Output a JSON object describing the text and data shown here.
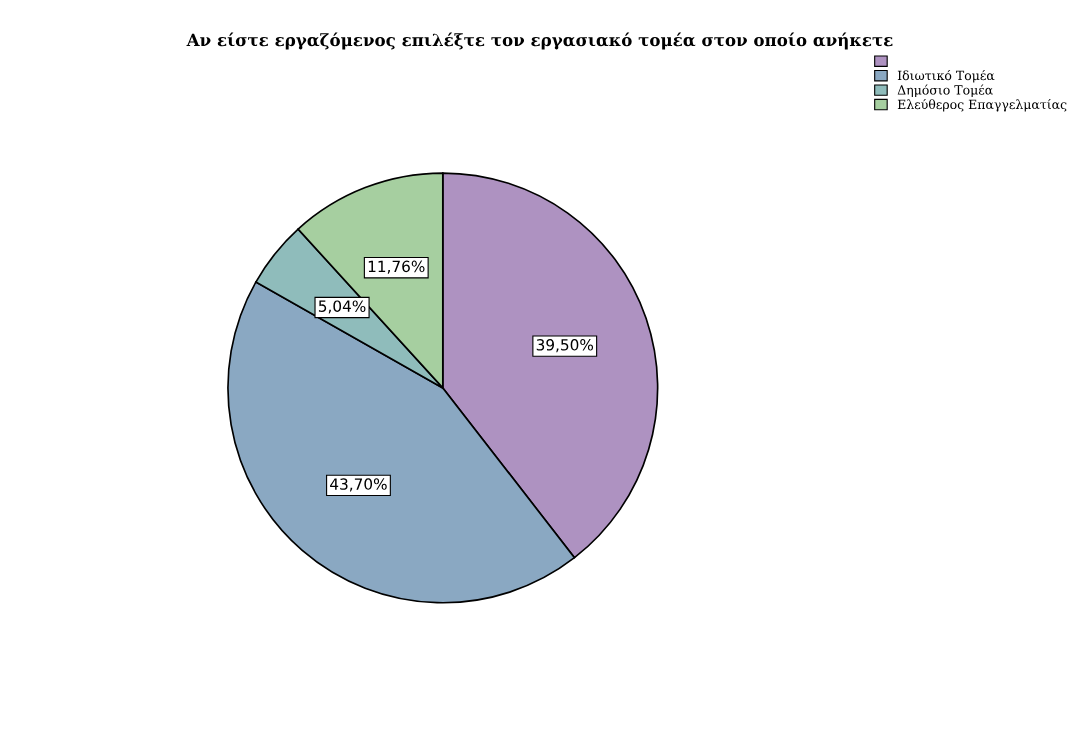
{
  "chart_data": {
    "type": "pie",
    "title": "Αν είστε εργαζόμενος επιλέξτε τον εργασιακό τομέα στον οποίο ανήκετε",
    "categories": [
      null,
      "Ιδιωτικό Τομέα",
      "Δημόσιο Τομέα",
      "Ελεύθερος Επαγγελματίας"
    ],
    "values": [
      39.5,
      43.7,
      5.04,
      11.76
    ],
    "colors": [
      "#ae92c1",
      "#8aa8c2",
      "#8fbcbb",
      "#a6cfa0"
    ],
    "value_labels": [
      "39,50%",
      "43,70%",
      "5,04%",
      "11,76%"
    ],
    "legend": "top right"
  }
}
